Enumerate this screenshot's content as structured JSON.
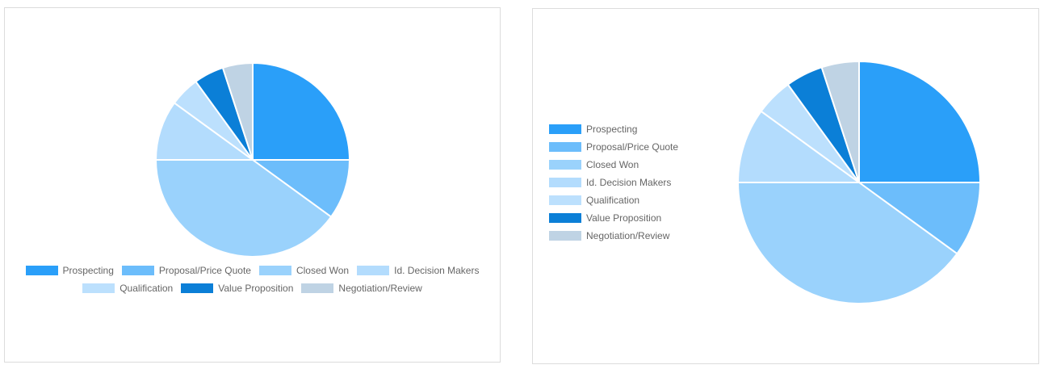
{
  "chart_data": [
    {
      "type": "pie",
      "legend_position": "bottom",
      "categories": [
        "Prospecting",
        "Proposal/Price Quote",
        "Closed Won",
        "Id. Decision Makers",
        "Qualification",
        "Value Proposition",
        "Negotiation/Review"
      ],
      "values": [
        25,
        10,
        40,
        10,
        5,
        5,
        5
      ],
      "colors": [
        "#2a9ff9",
        "#6cbdfb",
        "#9ad2fc",
        "#b3dcfd",
        "#bce0fd",
        "#0b7fd7",
        "#bfd3e4"
      ]
    },
    {
      "type": "pie",
      "legend_position": "left",
      "categories": [
        "Prospecting",
        "Proposal/Price Quote",
        "Closed Won",
        "Id. Decision Makers",
        "Qualification",
        "Value Proposition",
        "Negotiation/Review"
      ],
      "values": [
        25,
        10,
        40,
        10,
        5,
        5,
        5
      ],
      "colors": [
        "#2a9ff9",
        "#6cbdfb",
        "#9ad2fc",
        "#b3dcfd",
        "#bce0fd",
        "#0b7fd7",
        "#bfd3e4"
      ]
    }
  ]
}
